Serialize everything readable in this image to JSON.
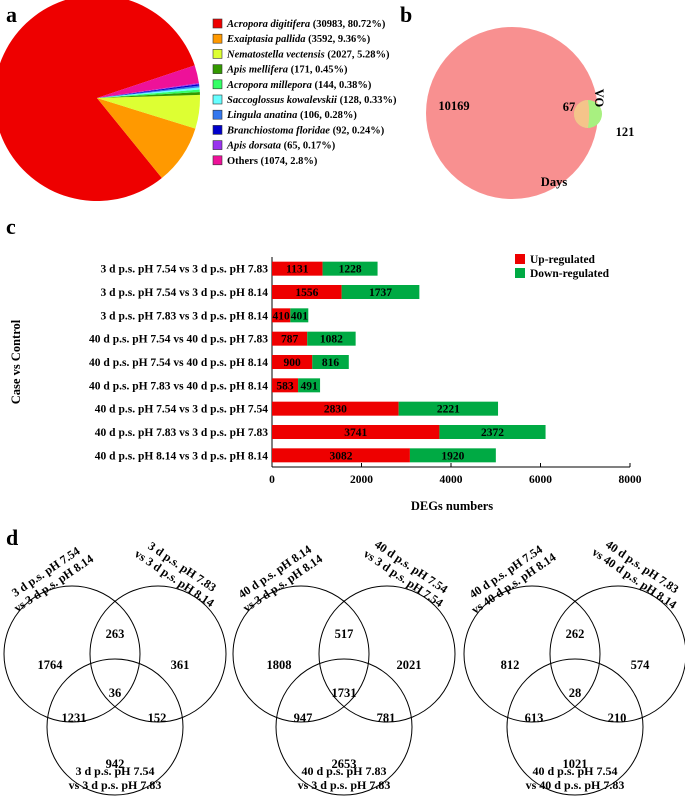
{
  "panels": {
    "a": "a",
    "b": "b",
    "c": "c",
    "d": "d"
  },
  "pie": {
    "slices": [
      {
        "species": "Acropora digitifera",
        "detail": " (30983, 80.72%)",
        "value": 30983,
        "color": "#ee0000"
      },
      {
        "species": "Exaiptasia pallida",
        "detail": " (3592, 9.36%)",
        "value": 3592,
        "color": "#ff9900"
      },
      {
        "species": "Nematostella vectensis",
        "detail": " (2027, 5.28%)",
        "value": 2027,
        "color": "#ddff33"
      },
      {
        "species": "Apis mellifera",
        "detail": " (171, 0.45%)",
        "value": 171,
        "color": "#339900"
      },
      {
        "species": "Acropora millepora",
        "detail": " (144, 0.38%)",
        "value": 144,
        "color": "#33ff66"
      },
      {
        "species": "Saccoglossus kowalevskii",
        "detail": " (128, 0.33%)",
        "value": 128,
        "color": "#66ffff"
      },
      {
        "species": "Lingula anatina",
        "detail": " (106, 0.28%)",
        "value": 106,
        "color": "#3377ee"
      },
      {
        "species": "Branchiostoma floridae",
        "detail": " (92, 0.24%)",
        "value": 92,
        "color": "#0000cc"
      },
      {
        "species": "Apis dorsata",
        "detail": " (65, 0.17%)",
        "value": 65,
        "color": "#9933ee"
      },
      {
        "species": "",
        "detail": "Others (1074, 2.8%)",
        "value": 1074,
        "color": "#ee1199"
      }
    ]
  },
  "venn_b": {
    "days_label": "Days",
    "vo_label": "VO",
    "days_only": "10169",
    "shared": "67",
    "vo_only": "121",
    "days_color": "#f89090",
    "vo_color": "#a8f080",
    "overlap_color": "#f5c48a"
  },
  "chart_data": {
    "type": "bar",
    "orientation": "horizontal",
    "stacked": true,
    "xlabel": "DEGs numbers",
    "ylabel": "Case vs Control",
    "xlim": [
      0,
      8000
    ],
    "xticks": [
      "0",
      "2000",
      "4000",
      "6000",
      "8000"
    ],
    "categories": [
      "3 d p.s. pH 7.54 vs 3 d p.s. pH 7.83",
      "3 d p.s. pH 7.54 vs 3 d p.s. pH 8.14",
      "3 d p.s. pH 7.83 vs 3 d p.s. pH 8.14",
      "40 d p.s. pH 7.54 vs 40 d p.s. pH 7.83",
      "40 d p.s. pH 7.54 vs 40 d p.s. pH 8.14",
      "40 d p.s. pH 7.83 vs 40 d p.s. pH 8.14",
      "40 d p.s. pH 7.54 vs 3 d p.s. pH 7.54",
      "40 d p.s. pH 7.83 vs 3 d p.s. pH 7.83",
      "40 d p.s. pH 8.14 vs 3 d p.s. pH 8.14"
    ],
    "series": [
      {
        "name": "Up-regulated",
        "color": "#ee0000",
        "values": [
          1131,
          1556,
          410,
          787,
          900,
          583,
          2830,
          3741,
          3082
        ]
      },
      {
        "name": "Down-regulated",
        "color": "#00aa44",
        "values": [
          1228,
          1737,
          401,
          1082,
          816,
          491,
          2221,
          2372,
          1920
        ]
      }
    ],
    "legend": "top-right"
  },
  "venn_d": [
    {
      "a_label": [
        "3 d p.s. pH 7.54",
        "vs 3 d p.s. pH 8.14"
      ],
      "b_label": [
        "3 d p.s. pH 7.83",
        "vs 3 d p.s. pH 8.14"
      ],
      "c_label": [
        "3 d p.s. pH 7.54",
        "vs 3 d p.s. pH 7.83"
      ],
      "a": "1764",
      "b": "361",
      "c": "942",
      "ab": "263",
      "ac": "1231",
      "bc": "152",
      "abc": "36"
    },
    {
      "a_label": [
        "40 d p.s. pH 8.14",
        "vs 3 d p.s. pH 8.14"
      ],
      "b_label": [
        "40 d p.s. pH 7.54",
        "vs 3 d p.s. pH 7.54"
      ],
      "c_label": [
        "40 d p.s. pH 7.83",
        "vs 3 d p.s. pH 7.83"
      ],
      "a": "1808",
      "b": "2021",
      "c": "2653",
      "ab": "517",
      "ac": "947",
      "bc": "781",
      "abc": "1731"
    },
    {
      "a_label": [
        "40 d p.s. pH 7.54",
        "vs 40 d p.s. pH 8.14"
      ],
      "b_label": [
        "40 d p.s. pH 7.83",
        "vs 40 d p.s. pH 8.14"
      ],
      "c_label": [
        "40 d p.s. pH 7.54",
        "vs 40 d p.s. pH 7.83"
      ],
      "a": "812",
      "b": "574",
      "c": "1021",
      "ab": "262",
      "ac": "613",
      "bc": "210",
      "abc": "28"
    }
  ]
}
